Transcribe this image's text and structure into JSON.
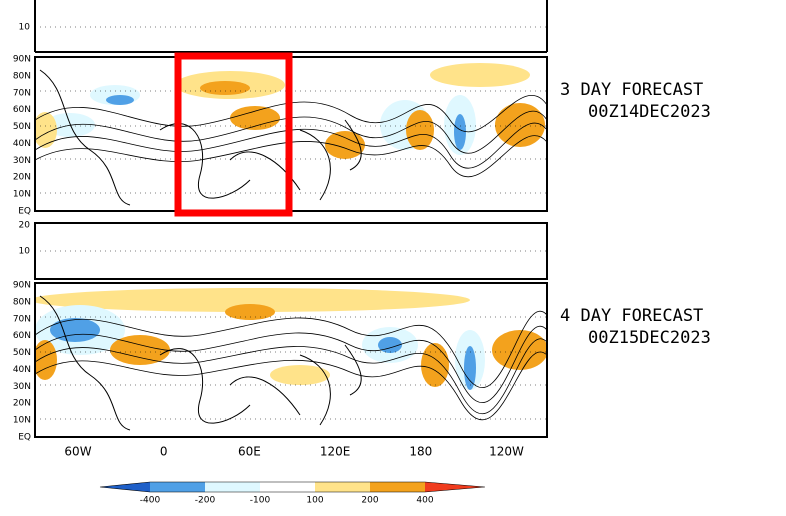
{
  "top_panel": {
    "ticks": [
      "10"
    ]
  },
  "panels": [
    {
      "lat_labels": [
        "90N",
        "80N",
        "70N",
        "60N",
        "50N",
        "40N",
        "30N",
        "20N",
        "10N",
        "EQ"
      ],
      "forecast": "3 DAY FORECAST",
      "date": "00Z14DEC2023"
    },
    {
      "lat_labels": [
        "90N",
        "80N",
        "70N",
        "60N",
        "50N",
        "40N",
        "30N",
        "20N",
        "10N",
        "EQ"
      ],
      "forecast": "4 DAY FORECAST",
      "date": "00Z15DEC2023"
    }
  ],
  "strip": {
    "ticks": [
      "20",
      "10"
    ]
  },
  "lon_labels": [
    "60W",
    "0",
    "60E",
    "120E",
    "180",
    "120W"
  ],
  "colorbar": {
    "labels": [
      "-400",
      "-200",
      "-100",
      "100",
      "200",
      "400"
    ]
  }
}
